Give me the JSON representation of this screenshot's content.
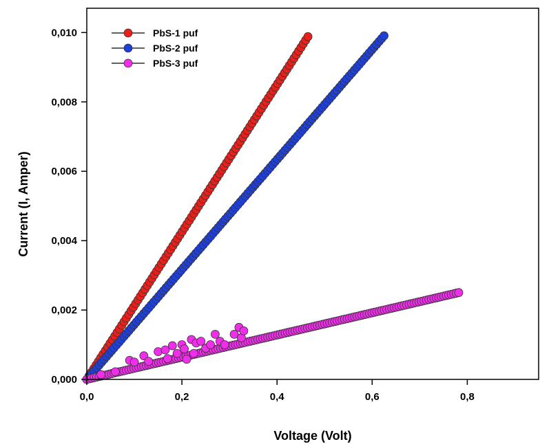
{
  "chart_data": {
    "type": "scatter",
    "title": "",
    "xlabel": "Voltage (Volt)",
    "ylabel": "Current (I, Amper)",
    "xlim": [
      0,
      0.95
    ],
    "ylim": [
      0,
      0.0107
    ],
    "x_ticks": [
      "0,0",
      "0,2",
      "0,4",
      "0,6",
      "0,8"
    ],
    "y_ticks": [
      "0,000",
      "0,002",
      "0,004",
      "0,006",
      "0,008",
      "0,010"
    ],
    "grid": false,
    "legend_position": "top-left",
    "series": [
      {
        "name": "PbS-1 puf",
        "color": "#e8201c",
        "marker": "circle",
        "x_start": 0.0,
        "x_end": 0.465,
        "slope_A_per_V": 0.02125,
        "points": 95
      },
      {
        "name": "PbS-2 puf",
        "color": "#1f3fd9",
        "marker": "circle",
        "x_start": 0.0,
        "x_end": 0.625,
        "slope_A_per_V": 0.01585,
        "points": 120
      },
      {
        "name": "PbS-3 puf",
        "color": "#ee2ee8",
        "marker": "circle",
        "x_start": 0.0,
        "x_end": 0.782,
        "slope_A_per_V": 0.0032,
        "points": 150,
        "noisy_region": [
          [
            0.03,
            0.00014
          ],
          [
            0.06,
            0.00022
          ],
          [
            0.09,
            0.00055
          ],
          [
            0.1,
            0.0005
          ],
          [
            0.12,
            0.00068
          ],
          [
            0.13,
            0.00052
          ],
          [
            0.15,
            0.0008
          ],
          [
            0.165,
            0.00085
          ],
          [
            0.17,
            0.0006
          ],
          [
            0.18,
            0.00097
          ],
          [
            0.19,
            0.00075
          ],
          [
            0.2,
            0.001
          ],
          [
            0.205,
            0.00088
          ],
          [
            0.21,
            0.00058
          ],
          [
            0.22,
            0.00115
          ],
          [
            0.225,
            0.00075
          ],
          [
            0.23,
            0.00105
          ],
          [
            0.24,
            0.0011
          ],
          [
            0.25,
            0.0009
          ],
          [
            0.26,
            0.001
          ],
          [
            0.27,
            0.0013
          ],
          [
            0.28,
            0.0011
          ],
          [
            0.29,
            0.001
          ],
          [
            0.31,
            0.0013
          ],
          [
            0.32,
            0.0015
          ],
          [
            0.325,
            0.0012
          ],
          [
            0.33,
            0.0014
          ]
        ]
      }
    ]
  }
}
